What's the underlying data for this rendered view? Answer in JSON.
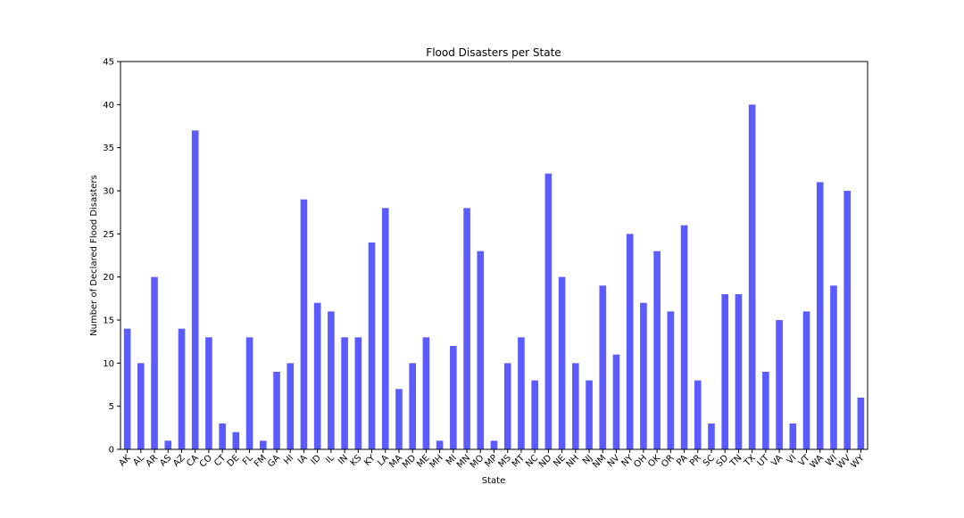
{
  "chart_data": {
    "type": "bar",
    "title": "Flood Disasters per State",
    "xlabel": "State",
    "ylabel": "Number of Declared Flood Disasters",
    "ylim": [
      0,
      45
    ],
    "yticks": [
      0,
      5,
      10,
      15,
      20,
      25,
      30,
      35,
      40,
      45
    ],
    "grid": false,
    "bar_color": "#5b5bff",
    "categories": [
      "AK",
      "AL",
      "AR",
      "AS",
      "AZ",
      "CA",
      "CO",
      "CT",
      "DE",
      "FL",
      "FM",
      "GA",
      "HI",
      "IA",
      "ID",
      "IL",
      "IN",
      "KS",
      "KY",
      "LA",
      "MA",
      "MD",
      "ME",
      "MH",
      "MI",
      "MN",
      "MO",
      "MP",
      "MS",
      "MT",
      "NC",
      "ND",
      "NE",
      "NH",
      "NJ",
      "NM",
      "NV",
      "NY",
      "OH",
      "OK",
      "OR",
      "PA",
      "PR",
      "SC",
      "SD",
      "TN",
      "TX",
      "UT",
      "VA",
      "VI",
      "VT",
      "WA",
      "WI",
      "WV",
      "WY"
    ],
    "values": [
      14,
      10,
      20,
      1,
      14,
      37,
      13,
      3,
      2,
      13,
      1,
      9,
      10,
      29,
      17,
      16,
      13,
      13,
      24,
      28,
      7,
      10,
      13,
      1,
      12,
      28,
      23,
      1,
      10,
      13,
      8,
      32,
      20,
      10,
      8,
      19,
      11,
      25,
      17,
      23,
      16,
      26,
      8,
      3,
      18,
      18,
      40,
      9,
      15,
      3,
      16,
      31,
      19,
      30,
      6
    ]
  }
}
